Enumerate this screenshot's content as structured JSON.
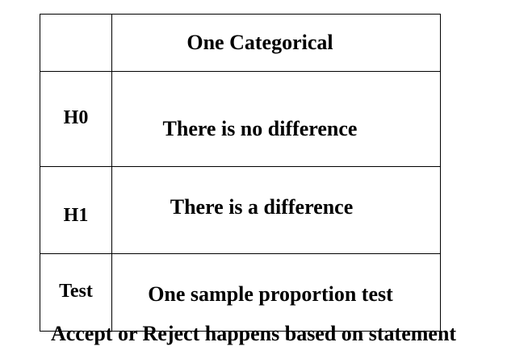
{
  "table": {
    "header": {
      "label": "",
      "value": "One Categorical"
    },
    "rows": [
      {
        "label": "H0",
        "value": "There is no difference"
      },
      {
        "label": "H1",
        "value": "There is a difference"
      },
      {
        "label": "Test",
        "value": "One sample proportion test"
      }
    ]
  },
  "caption": "Accept or Reject happens based on statement"
}
